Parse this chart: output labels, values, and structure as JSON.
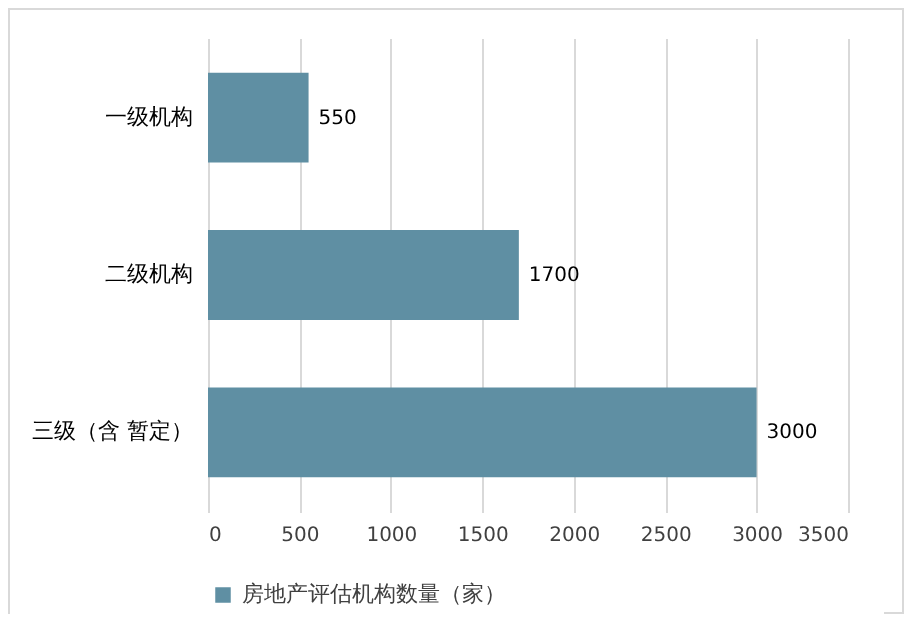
{
  "chart_data": {
    "type": "bar",
    "orientation": "horizontal",
    "categories": [
      "一级机构",
      "二级机构",
      "三级（含 暂定）"
    ],
    "series": [
      {
        "name": "房地产评估机构数量（家）",
        "color": "#5f8fa3",
        "values": [
          550,
          1700,
          3000
        ]
      }
    ],
    "xlim": [
      0,
      3500
    ],
    "xticks": [
      0,
      500,
      1000,
      1500,
      2000,
      2500,
      3000,
      3500
    ],
    "grid": "x",
    "legend": "bottom",
    "data_labels": true
  }
}
